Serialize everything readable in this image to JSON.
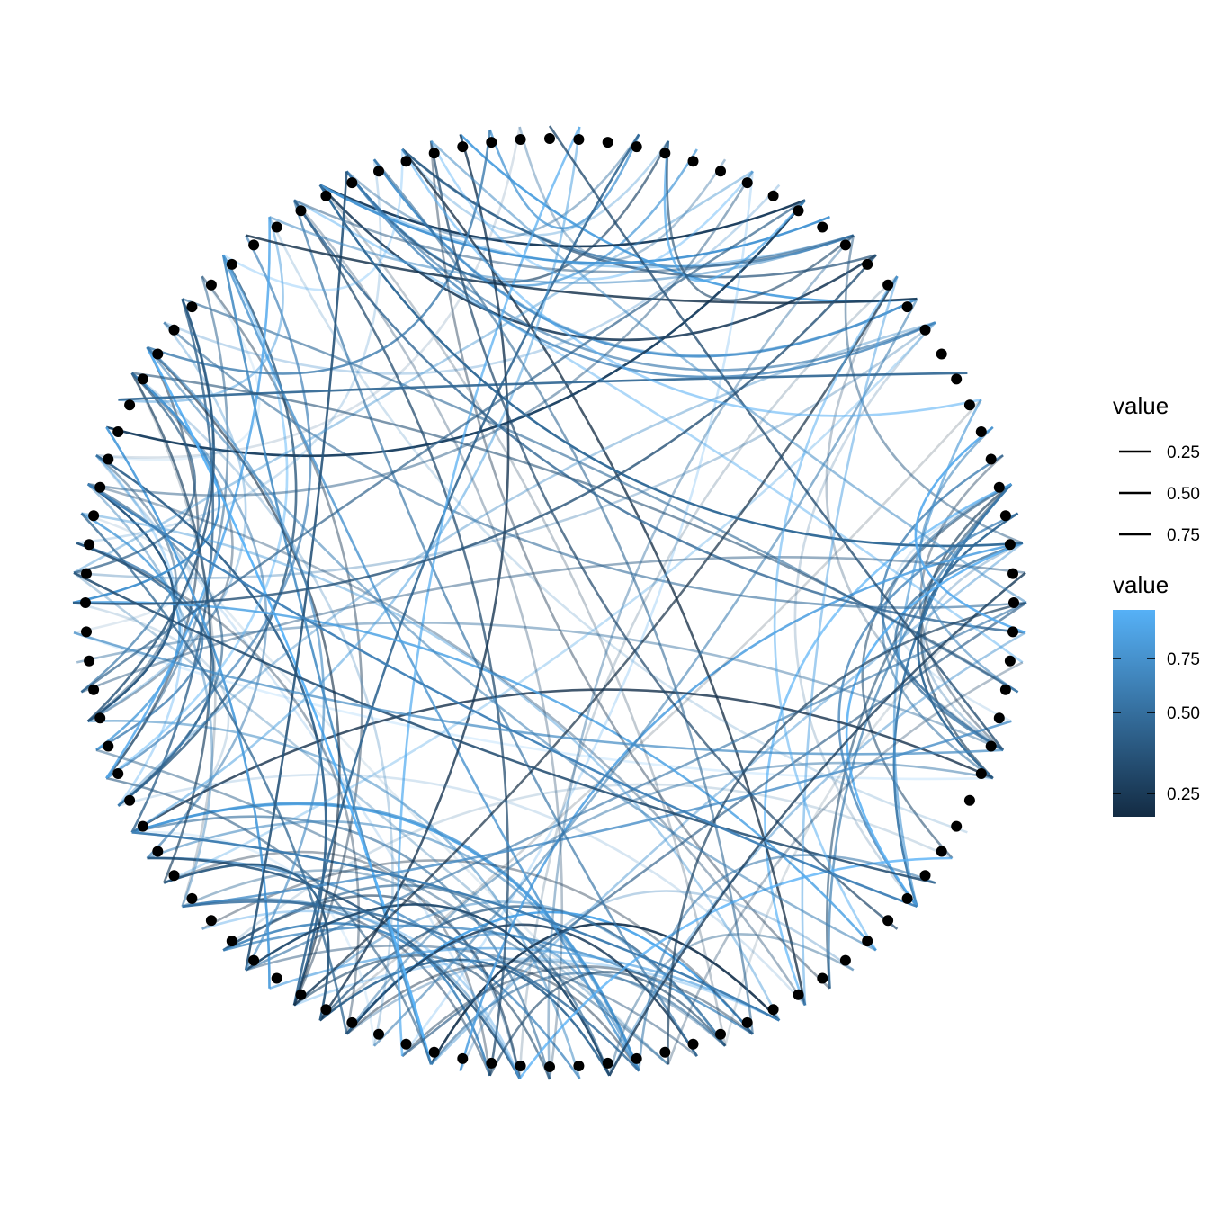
{
  "chart_data": {
    "type": "network",
    "layout": "circle",
    "node_count": 100,
    "edge_count": 200,
    "node_color": "#000000",
    "edge_color_scale": {
      "low": "#132B43",
      "high": "#56B1F7"
    },
    "legends": [
      {
        "title": "value",
        "kind": "alpha",
        "labels": [
          "0.25",
          "0.50",
          "0.75"
        ],
        "values": [
          0.25,
          0.5,
          0.75
        ]
      },
      {
        "title": "value",
        "kind": "colour",
        "labels": [
          "0.25",
          "0.50",
          "0.75"
        ],
        "values": [
          0.25,
          0.5,
          0.75
        ]
      }
    ],
    "edge_clusters": [
      {
        "hub_from": 71,
        "hub_to": 79,
        "span": 13
      },
      {
        "hub_from": 19,
        "hub_to": 27,
        "span": 14
      },
      {
        "hub_from": 45,
        "hub_to": 53,
        "span": 13
      },
      {
        "hub_from": 0,
        "hub_to": 8,
        "span": 10
      },
      {
        "hub_from": 95,
        "hub_to": 4,
        "span": 10
      }
    ]
  }
}
